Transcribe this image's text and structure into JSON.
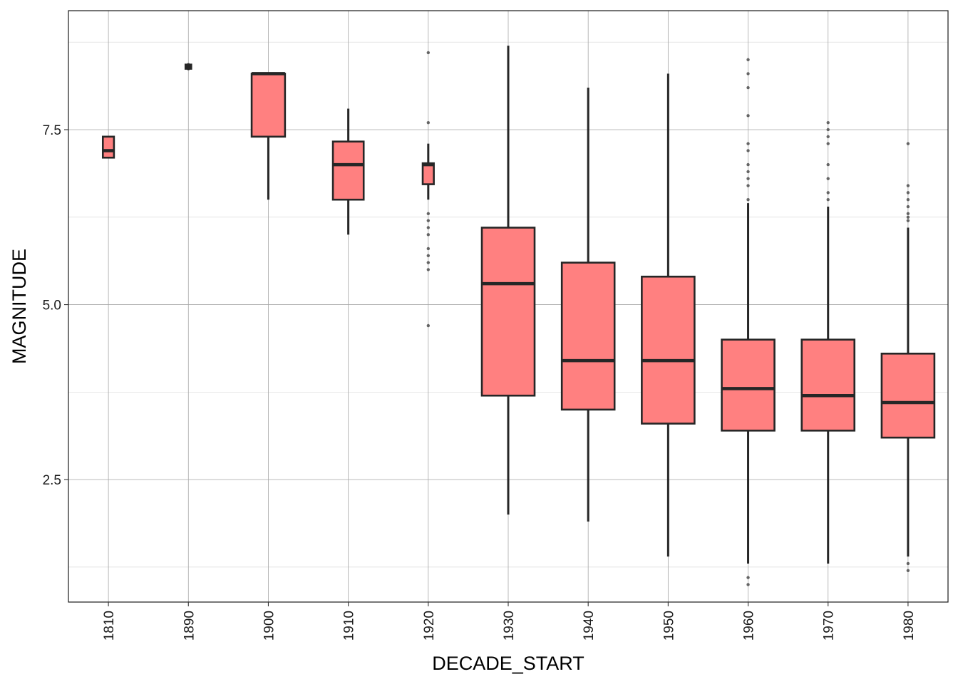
{
  "chart_data": {
    "type": "box",
    "xlabel": "DECADE_START",
    "ylabel": "MAGNITUDE",
    "ylim": [
      0.75,
      9.2
    ],
    "y_ticks": [
      2.5,
      5.0,
      7.5
    ],
    "y_tick_labels": [
      "2.5",
      "5.0",
      "7.5"
    ],
    "categories": [
      "1810",
      "1890",
      "1900",
      "1910",
      "1920",
      "1930",
      "1940",
      "1950",
      "1960",
      "1970",
      "1980"
    ],
    "grid": true,
    "legend": "none",
    "fill_color": "#ff8080",
    "stroke_color": "#262626",
    "outlier_color": "#4d4d4d",
    "boxes": [
      {
        "category": "1810",
        "lower_whisker": 7.1,
        "q1": 7.1,
        "median": 7.2,
        "q3": 7.4,
        "upper_whisker": 7.4,
        "outliers": []
      },
      {
        "category": "1890",
        "lower_whisker": 8.35,
        "q1": 8.37,
        "median": 8.4,
        "q3": 8.43,
        "upper_whisker": 8.45,
        "outliers": []
      },
      {
        "category": "1900",
        "lower_whisker": 6.5,
        "q1": 7.4,
        "median": 8.3,
        "q3": 8.3,
        "upper_whisker": 8.3,
        "outliers": []
      },
      {
        "category": "1910",
        "lower_whisker": 6.0,
        "q1": 6.5,
        "median": 7.0,
        "q3": 7.33,
        "upper_whisker": 7.8,
        "outliers": []
      },
      {
        "category": "1920",
        "lower_whisker": 6.5,
        "q1": 6.72,
        "median": 7.0,
        "q3": 7.02,
        "upper_whisker": 7.3,
        "outliers": [
          8.6,
          7.6,
          6.3,
          6.2,
          6.1,
          6.0,
          5.8,
          5.7,
          5.6,
          5.5,
          4.7
        ]
      },
      {
        "category": "1930",
        "lower_whisker": 2.0,
        "q1": 3.7,
        "median": 5.3,
        "q3": 6.1,
        "upper_whisker": 8.7,
        "outliers": []
      },
      {
        "category": "1940",
        "lower_whisker": 1.9,
        "q1": 3.5,
        "median": 4.2,
        "q3": 5.6,
        "upper_whisker": 8.1,
        "outliers": []
      },
      {
        "category": "1950",
        "lower_whisker": 1.4,
        "q1": 3.3,
        "median": 4.2,
        "q3": 5.4,
        "upper_whisker": 8.3,
        "outliers": []
      },
      {
        "category": "1960",
        "lower_whisker": 1.3,
        "q1": 3.2,
        "median": 3.8,
        "q3": 4.5,
        "upper_whisker": 6.45,
        "outliers": [
          8.5,
          8.3,
          8.1,
          7.7,
          7.3,
          7.2,
          7.0,
          6.9,
          6.8,
          6.7,
          6.5,
          1.1,
          1.0
        ]
      },
      {
        "category": "1970",
        "lower_whisker": 1.3,
        "q1": 3.2,
        "median": 3.7,
        "q3": 4.5,
        "upper_whisker": 6.4,
        "outliers": [
          7.6,
          7.5,
          7.4,
          7.3,
          7.0,
          6.8,
          6.6,
          6.5
        ]
      },
      {
        "category": "1980",
        "lower_whisker": 1.4,
        "q1": 3.1,
        "median": 3.6,
        "q3": 4.3,
        "upper_whisker": 6.1,
        "outliers": [
          7.3,
          6.7,
          6.6,
          6.5,
          6.4,
          6.3,
          6.25,
          6.2,
          1.3,
          1.2
        ]
      }
    ]
  }
}
